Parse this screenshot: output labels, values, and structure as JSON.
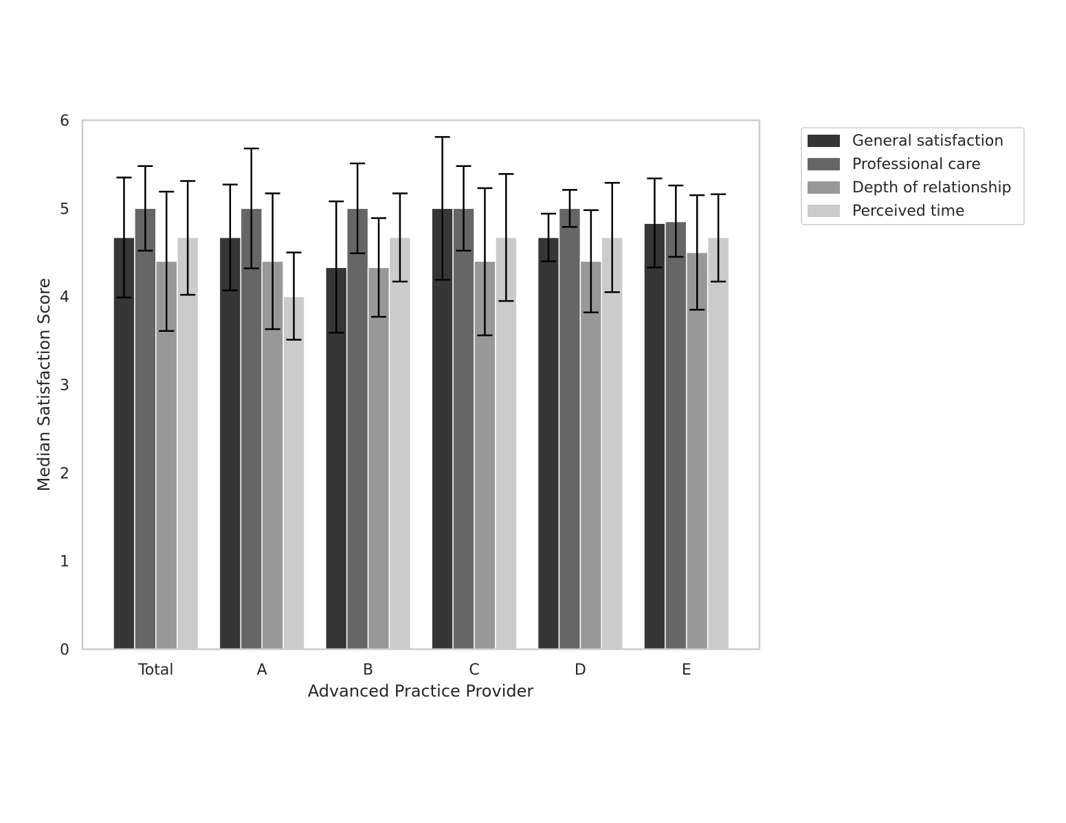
{
  "chart_data": {
    "type": "bar",
    "title": "",
    "xlabel": "Advanced Practice Provider",
    "ylabel": "Median Satisfaction Score",
    "ylim": [
      0,
      6
    ],
    "yticks": [
      0,
      1,
      2,
      3,
      4,
      5,
      6
    ],
    "grid": false,
    "legend_position": "outside-top-right",
    "categories": [
      "Total",
      "A",
      "B",
      "C",
      "D",
      "E"
    ],
    "series": [
      {
        "name": "General satisfaction",
        "color": "#363636",
        "values": [
          4.67,
          4.67,
          4.33,
          5.0,
          4.67,
          4.83
        ],
        "error_low": [
          3.99,
          4.07,
          3.59,
          4.19,
          4.4,
          4.33
        ],
        "error_high": [
          5.35,
          5.27,
          5.08,
          5.81,
          4.94,
          5.34
        ]
      },
      {
        "name": "Professional care",
        "color": "#666666",
        "values": [
          5.0,
          5.0,
          5.0,
          5.0,
          5.0,
          4.85
        ],
        "error_low": [
          4.52,
          4.32,
          4.49,
          4.52,
          4.79,
          4.45
        ],
        "error_high": [
          5.48,
          5.68,
          5.51,
          5.48,
          5.21,
          5.26
        ]
      },
      {
        "name": "Depth of relationship",
        "color": "#989898",
        "values": [
          4.4,
          4.4,
          4.33,
          4.4,
          4.4,
          4.5
        ],
        "error_low": [
          3.61,
          3.63,
          3.77,
          3.56,
          3.82,
          3.85
        ],
        "error_high": [
          5.19,
          5.17,
          4.89,
          5.23,
          4.98,
          5.15
        ]
      },
      {
        "name": "Perceived time",
        "color": "#cbcbcb",
        "values": [
          4.67,
          4.0,
          4.67,
          4.67,
          4.67,
          4.67
        ],
        "error_low": [
          4.02,
          3.51,
          4.17,
          3.95,
          4.05,
          4.17
        ],
        "error_high": [
          5.31,
          4.5,
          5.17,
          5.39,
          5.29,
          5.16
        ]
      }
    ]
  }
}
